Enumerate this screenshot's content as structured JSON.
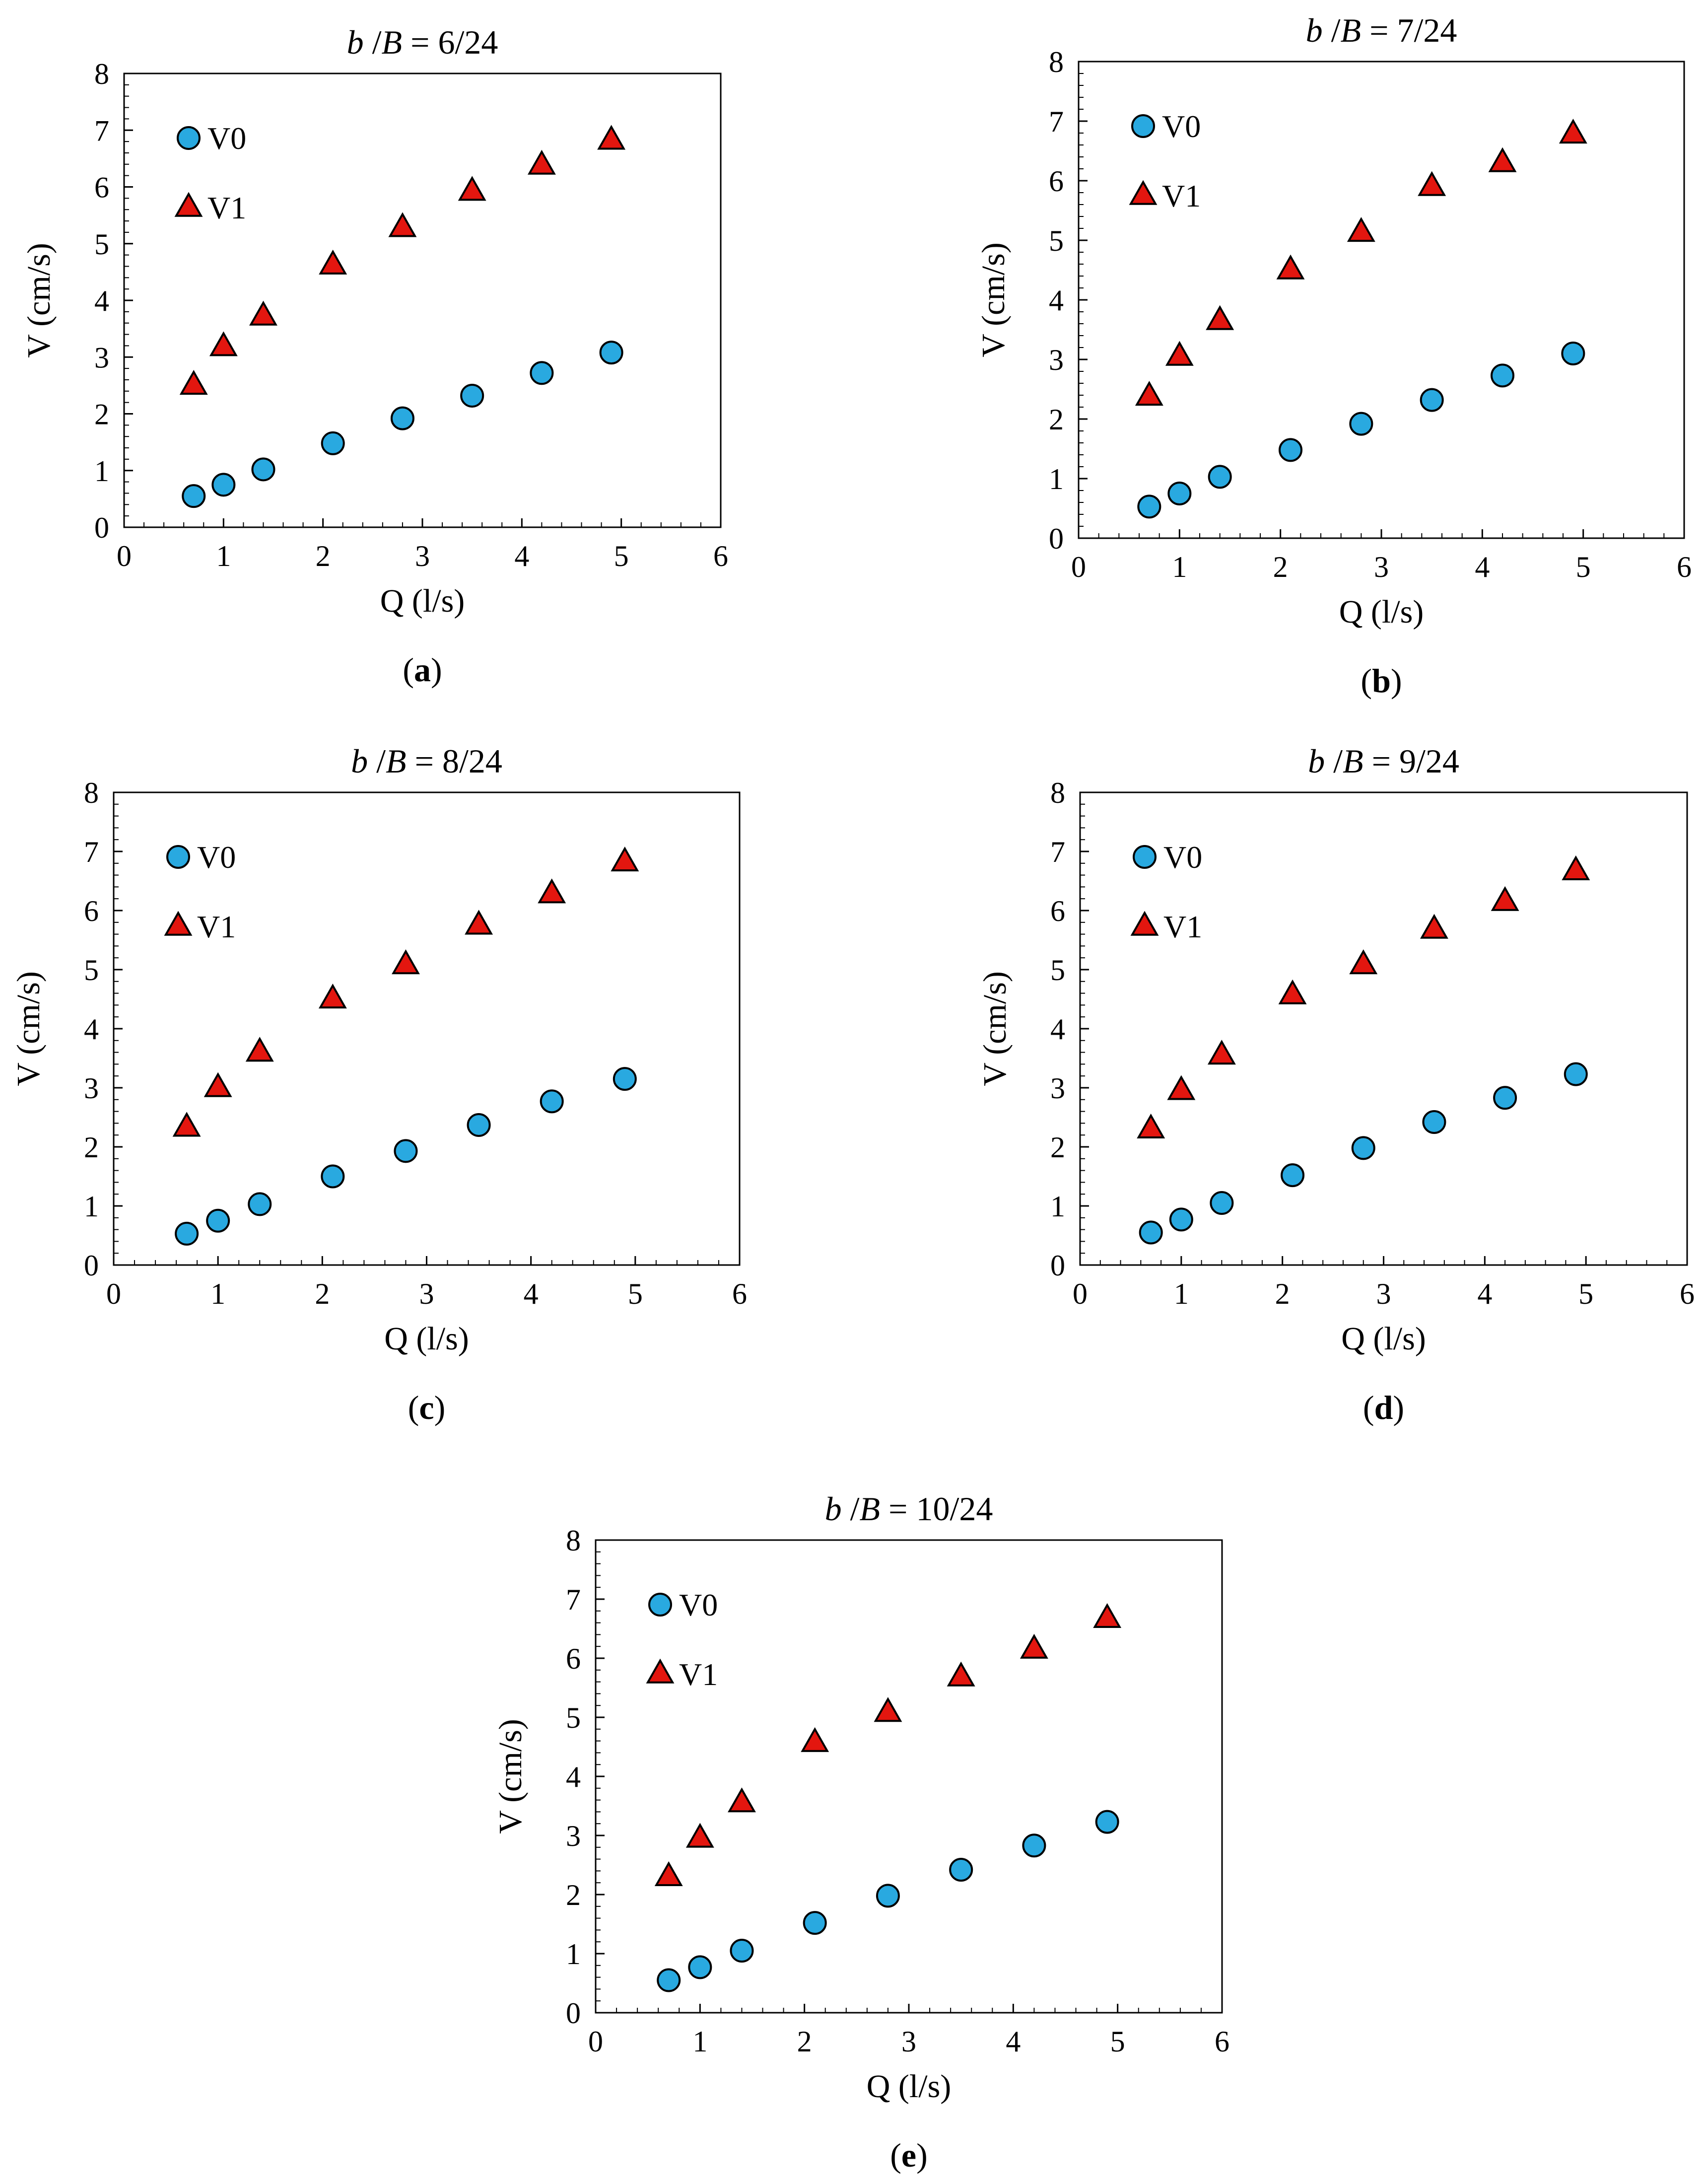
{
  "colors": {
    "v0": "#29a9e0",
    "v1": "#e3160f",
    "outline": "#000000"
  },
  "chart_data": [
    {
      "type": "scatter",
      "panel_tag": "a",
      "title_prefix": "b",
      "title_sep": " /",
      "title_var": "B",
      "title_value": " = 6/24",
      "xlabel": "Q (l/s)",
      "ylabel": "V (cm/s)",
      "xlim": [
        0,
        6
      ],
      "ylim": [
        0,
        8
      ],
      "xticks": [
        0,
        1,
        2,
        3,
        4,
        5,
        6
      ],
      "yticks": [
        0,
        1,
        2,
        3,
        4,
        5,
        6,
        7,
        8
      ],
      "legend_position": "top-left",
      "series": [
        {
          "name": "V0",
          "marker": "circle",
          "x": [
            0.7,
            1.0,
            1.4,
            2.1,
            2.8,
            3.5,
            4.2,
            4.9
          ],
          "y": [
            0.55,
            0.75,
            1.02,
            1.48,
            1.92,
            2.32,
            2.72,
            3.08
          ]
        },
        {
          "name": "V1",
          "marker": "triangle",
          "x": [
            0.7,
            1.0,
            1.4,
            2.1,
            2.8,
            3.5,
            4.2,
            4.9
          ],
          "y": [
            2.5,
            3.18,
            3.72,
            4.62,
            5.28,
            5.92,
            6.38,
            6.82
          ]
        }
      ]
    },
    {
      "type": "scatter",
      "panel_tag": "b",
      "title_prefix": "b",
      "title_sep": " /",
      "title_var": "B",
      "title_value": " = 7/24",
      "xlabel": "Q (l/s)",
      "ylabel": "V (cm/s)",
      "xlim": [
        0,
        6
      ],
      "ylim": [
        0,
        8
      ],
      "xticks": [
        0,
        1,
        2,
        3,
        4,
        5,
        6
      ],
      "yticks": [
        0,
        1,
        2,
        3,
        4,
        5,
        6,
        7,
        8
      ],
      "legend_position": "top-left",
      "series": [
        {
          "name": "V0",
          "marker": "circle",
          "x": [
            0.7,
            1.0,
            1.4,
            2.1,
            2.8,
            3.5,
            4.2,
            4.9
          ],
          "y": [
            0.53,
            0.75,
            1.03,
            1.48,
            1.92,
            2.32,
            2.73,
            3.1
          ]
        },
        {
          "name": "V1",
          "marker": "triangle",
          "x": [
            0.7,
            1.0,
            1.4,
            2.1,
            2.8,
            3.5,
            4.2,
            4.9
          ],
          "y": [
            2.38,
            3.05,
            3.65,
            4.5,
            5.13,
            5.9,
            6.3,
            6.78
          ]
        }
      ]
    },
    {
      "type": "scatter",
      "panel_tag": "c",
      "title_prefix": "b",
      "title_sep": " /",
      "title_var": "B",
      "title_value": " = 8/24",
      "xlabel": "Q (l/s)",
      "ylabel": "V (cm/s)",
      "xlim": [
        0,
        6
      ],
      "ylim": [
        0,
        8
      ],
      "xticks": [
        0,
        1,
        2,
        3,
        4,
        5,
        6
      ],
      "yticks": [
        0,
        1,
        2,
        3,
        4,
        5,
        6,
        7,
        8
      ],
      "legend_position": "top-left",
      "series": [
        {
          "name": "V0",
          "marker": "circle",
          "x": [
            0.7,
            1.0,
            1.4,
            2.1,
            2.8,
            3.5,
            4.2,
            4.9
          ],
          "y": [
            0.53,
            0.75,
            1.03,
            1.5,
            1.93,
            2.37,
            2.77,
            3.15
          ]
        },
        {
          "name": "V1",
          "marker": "triangle",
          "x": [
            0.7,
            1.0,
            1.4,
            2.1,
            2.8,
            3.5,
            4.2,
            4.9
          ],
          "y": [
            2.33,
            3.0,
            3.6,
            4.5,
            5.08,
            5.75,
            6.28,
            6.82
          ]
        }
      ]
    },
    {
      "type": "scatter",
      "panel_tag": "d",
      "title_prefix": "b",
      "title_sep": " /",
      "title_var": "B",
      "title_value": " = 9/24",
      "xlabel": "Q (l/s)",
      "ylabel": "V (cm/s)",
      "xlim": [
        0,
        6
      ],
      "ylim": [
        0,
        8
      ],
      "xticks": [
        0,
        1,
        2,
        3,
        4,
        5,
        6
      ],
      "yticks": [
        0,
        1,
        2,
        3,
        4,
        5,
        6,
        7,
        8
      ],
      "legend_position": "top-left",
      "series": [
        {
          "name": "V0",
          "marker": "circle",
          "x": [
            0.7,
            1.0,
            1.4,
            2.1,
            2.8,
            3.5,
            4.2,
            4.9
          ],
          "y": [
            0.55,
            0.77,
            1.05,
            1.52,
            1.98,
            2.42,
            2.83,
            3.23
          ]
        },
        {
          "name": "V1",
          "marker": "triangle",
          "x": [
            0.7,
            1.0,
            1.4,
            2.1,
            2.8,
            3.5,
            4.2,
            4.9
          ],
          "y": [
            2.3,
            2.95,
            3.55,
            4.57,
            5.08,
            5.68,
            6.15,
            6.67
          ]
        }
      ]
    },
    {
      "type": "scatter",
      "panel_tag": "e",
      "title_prefix": "b",
      "title_sep": " /",
      "title_var": "B",
      "title_value": " = 10/24",
      "xlabel": "Q (l/s)",
      "ylabel": "V (cm/s)",
      "xlim": [
        0,
        6
      ],
      "ylim": [
        0,
        8
      ],
      "xticks": [
        0,
        1,
        2,
        3,
        4,
        5,
        6
      ],
      "yticks": [
        0,
        1,
        2,
        3,
        4,
        5,
        6,
        7,
        8
      ],
      "legend_position": "top-left",
      "series": [
        {
          "name": "V0",
          "marker": "circle",
          "x": [
            0.7,
            1.0,
            1.4,
            2.1,
            2.8,
            3.5,
            4.2,
            4.9
          ],
          "y": [
            0.55,
            0.77,
            1.05,
            1.52,
            1.98,
            2.42,
            2.83,
            3.23
          ]
        },
        {
          "name": "V1",
          "marker": "triangle",
          "x": [
            0.7,
            1.0,
            1.4,
            2.1,
            2.8,
            3.5,
            4.2,
            4.9
          ],
          "y": [
            2.3,
            2.95,
            3.55,
            4.57,
            5.08,
            5.68,
            6.15,
            6.67
          ]
        }
      ]
    }
  ]
}
